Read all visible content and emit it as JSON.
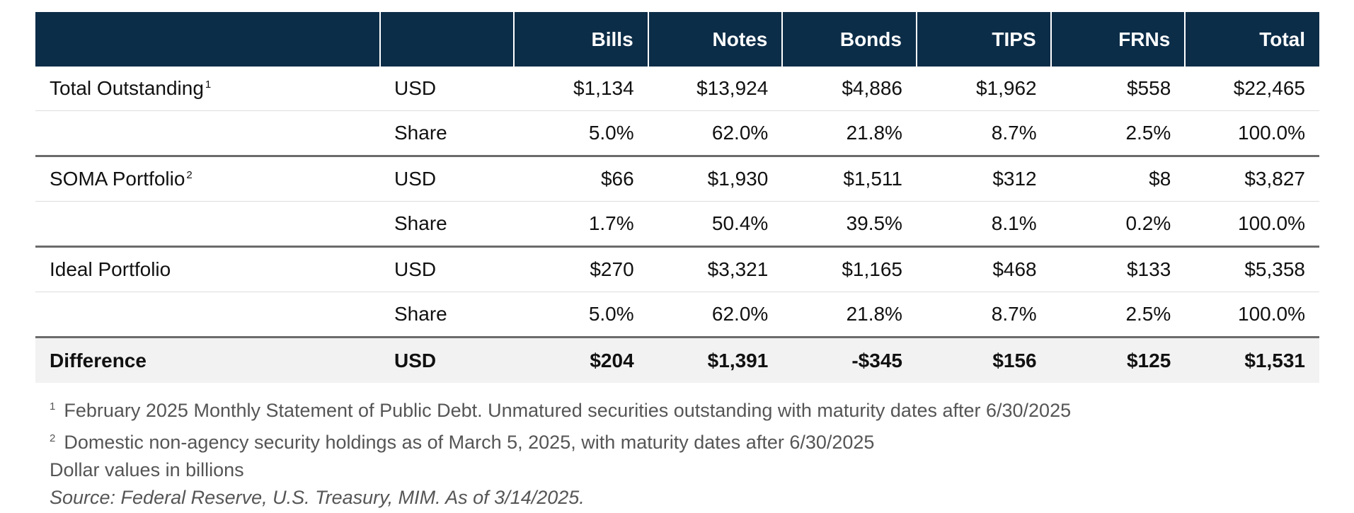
{
  "table": {
    "columns": [
      "Bills",
      "Notes",
      "Bonds",
      "TIPS",
      "FRNs",
      "Total"
    ],
    "groups": [
      {
        "label": "Total Outstanding",
        "note": "1",
        "rows": [
          {
            "unit": "USD",
            "cells": [
              "$1,134",
              "$13,924",
              "$4,886",
              "$1,962",
              "$558",
              "$22,465"
            ]
          },
          {
            "unit": "Share",
            "cells": [
              "5.0%",
              "62.0%",
              "21.8%",
              "8.7%",
              "2.5%",
              "100.0%"
            ]
          }
        ]
      },
      {
        "label": "SOMA Portfolio",
        "note": "2",
        "rows": [
          {
            "unit": "USD",
            "cells": [
              "$66",
              "$1,930",
              "$1,511",
              "$312",
              "$8",
              "$3,827"
            ]
          },
          {
            "unit": "Share",
            "cells": [
              "1.7%",
              "50.4%",
              "39.5%",
              "8.1%",
              "0.2%",
              "100.0%"
            ]
          }
        ]
      },
      {
        "label": "Ideal Portfolio",
        "rows": [
          {
            "unit": "USD",
            "cells": [
              "$270",
              "$3,321",
              "$1,165",
              "$468",
              "$133",
              "$5,358"
            ]
          },
          {
            "unit": "Share",
            "cells": [
              "5.0%",
              "62.0%",
              "21.8%",
              "8.7%",
              "2.5%",
              "100.0%"
            ]
          }
        ]
      },
      {
        "label": "Difference",
        "total": true,
        "rows": [
          {
            "unit": "USD",
            "cells": [
              "$204",
              "$1,391",
              "-$345",
              "$156",
              "$125",
              "$1,531"
            ]
          }
        ]
      }
    ]
  },
  "footnotes": [
    {
      "marker": "1",
      "text": "February 2025 Monthly Statement of Public Debt. Unmatured securities outstanding with maturity dates after 6/30/2025"
    },
    {
      "marker": "2",
      "text": "Domestic non-agency security holdings as of March 5, 2025, with maturity dates after 6/30/2025"
    }
  ],
  "notes": [
    "Dollar values in billions"
  ],
  "source": "Source: Federal Reserve, U.S. Treasury, MIM. As of 3/14/2025."
}
